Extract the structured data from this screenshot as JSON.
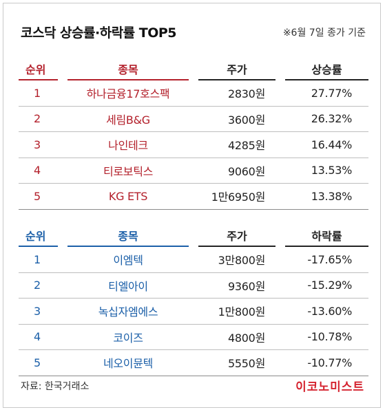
{
  "title": "코스닥 상승률·하락률 TOP5",
  "basis_note": "※6월 7일 종가 기준",
  "colors": {
    "gain": "#b3202b",
    "loss": "#1b5fa8",
    "brand": "#d5232f"
  },
  "gainers": {
    "headers": [
      "순위",
      "종목",
      "주가",
      "상승률"
    ],
    "rows": [
      {
        "rank": "1",
        "name": "하나금융17호스팩",
        "price": "2830원",
        "change": "27.77%"
      },
      {
        "rank": "2",
        "name": "세림B&G",
        "price": "3600원",
        "change": "26.32%"
      },
      {
        "rank": "3",
        "name": "나인테크",
        "price": "4285원",
        "change": "16.44%"
      },
      {
        "rank": "4",
        "name": "티로보틱스",
        "price": "9060원",
        "change": "13.53%"
      },
      {
        "rank": "5",
        "name": "KG ETS",
        "price": "1만6950원",
        "change": "13.38%"
      }
    ]
  },
  "losers": {
    "headers": [
      "순위",
      "종목",
      "주가",
      "하락률"
    ],
    "rows": [
      {
        "rank": "1",
        "name": "이엠텍",
        "price": "3만800원",
        "change": "-17.65%"
      },
      {
        "rank": "2",
        "name": "티엘아이",
        "price": "9360원",
        "change": "-15.29%"
      },
      {
        "rank": "3",
        "name": "녹십자엠에스",
        "price": "1만800원",
        "change": "-13.60%"
      },
      {
        "rank": "4",
        "name": "코이즈",
        "price": "4800원",
        "change": "-10.78%"
      },
      {
        "rank": "5",
        "name": "네오이뮨텍",
        "price": "5550원",
        "change": "-10.77%"
      }
    ]
  },
  "source": "자료: 한국거래소",
  "brand": "이코노미스트"
}
